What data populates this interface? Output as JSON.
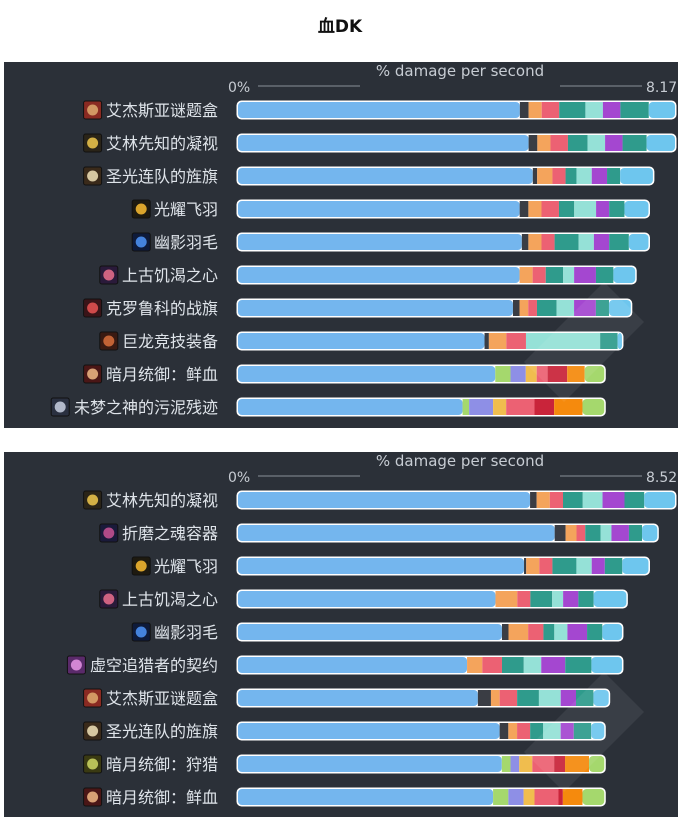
{
  "title": "血DK",
  "colors": {
    "panel_bg": "#2b3038",
    "axis_line": "#8a9099",
    "row_bg": "#ffffff",
    "segments": [
      "#74b6ee",
      "#3a3d44",
      "#f4a45c",
      "#ec6173",
      "#2f9b8c",
      "#95e1d7",
      "#a447d0",
      "#2f9b8c",
      "#6ec6ee"
    ],
    "alt_segments": [
      "#74b6ee",
      "#a5d86d",
      "#8e8fe6",
      "#f0bd4e",
      "#ec6173",
      "#c9243a",
      "#f58a0d",
      "#a5d86d"
    ]
  },
  "chart_data": [
    {
      "type": "bar",
      "orientation": "horizontal",
      "stacked": true,
      "xlabel": "% damage per second",
      "xlim_labels": [
        "0%",
        "8.17"
      ],
      "categories": [
        "艾杰斯亚谜题盒",
        "艾林先知的凝视",
        "圣光连队的旌旗",
        "光耀飞羽",
        "幽影羽毛",
        "上古饥渴之心",
        "克罗鲁科的战旗",
        "巨龙竞技装备",
        "暗月统御：鲜血",
        "未梦之神的污泥残迹"
      ],
      "icons": [
        "puzzle-box-icon",
        "eye-of-seer-icon",
        "banner-icon",
        "radiant-plume-icon",
        "shadow-feather-icon",
        "ancient-heart-icon",
        "war-banner-icon",
        "dragon-gear-icon",
        "darkmoon-blood-icon",
        "slime-remnant-icon"
      ],
      "totals": [
        100,
        100,
        95,
        94,
        94,
        91,
        90,
        88,
        84,
        84
      ],
      "segments": [
        [
          64.5,
          2,
          3,
          4,
          6,
          4,
          4,
          6.5,
          6
        ],
        [
          66.5,
          2,
          3,
          4,
          4.5,
          4,
          4,
          5.5,
          6.5
        ],
        [
          67.5,
          1,
          3.5,
          3,
          2.5,
          3.5,
          3.5,
          3,
          7.5
        ],
        [
          64.5,
          2,
          3,
          4,
          3.5,
          5,
          3,
          3.5,
          5.5
        ],
        [
          65,
          1.5,
          3,
          3,
          5.5,
          3.5,
          3.5,
          4.5,
          4.5
        ],
        [
          64.5,
          0,
          3,
          3,
          4,
          2.5,
          5,
          4,
          5
        ],
        [
          63,
          1.5,
          2,
          2,
          4.5,
          4,
          5,
          3,
          5
        ],
        [
          56.5,
          1,
          4,
          4.5,
          0,
          17,
          0,
          4,
          1
        ],
        [
          59,
          3.5,
          3.5,
          2.5,
          2.5,
          4.5,
          4,
          4.5
        ],
        [
          51.5,
          1.5,
          5.5,
          3,
          6.5,
          4.5,
          6.5,
          5
        ]
      ],
      "segment_palette": [
        "s",
        "s",
        "s",
        "s",
        "s",
        "s",
        "s",
        "s",
        "a",
        "a"
      ]
    },
    {
      "type": "bar",
      "orientation": "horizontal",
      "stacked": true,
      "xlabel": "% damage per second",
      "xlim_labels": [
        "0%",
        "8.52"
      ],
      "categories": [
        "艾林先知的凝视",
        "折磨之魂容器",
        "光耀飞羽",
        "上古饥渴之心",
        "幽影羽毛",
        "虚空追猎者的契约",
        "艾杰斯亚谜题盒",
        "圣光连队的旌旗",
        "暗月统御：狩猎",
        "暗月统御：鲜血"
      ],
      "icons": [
        "eye-of-seer-icon",
        "soul-vessel-icon",
        "radiant-plume-icon",
        "ancient-heart-icon",
        "shadow-feather-icon",
        "void-pact-icon",
        "puzzle-box-icon",
        "banner-icon",
        "darkmoon-hunt-icon",
        "darkmoon-blood-icon"
      ],
      "totals": [
        100,
        96,
        94,
        89,
        88,
        88,
        85,
        84,
        84,
        84
      ],
      "segments": [
        [
          66.5,
          1.5,
          3,
          3,
          4.5,
          4.5,
          5,
          4.5,
          7
        ],
        [
          72.5,
          2.5,
          2.5,
          2,
          3.5,
          2.5,
          4,
          3,
          3.5
        ],
        [
          65.5,
          0.5,
          3,
          3,
          5.5,
          3.5,
          3,
          4,
          6
        ],
        [
          59,
          0,
          5,
          3,
          5,
          2.5,
          3.5,
          3.5,
          7.5
        ],
        [
          60.5,
          1.5,
          4.5,
          3.5,
          2.5,
          3,
          4.5,
          3.5,
          4.5
        ],
        [
          52.5,
          0,
          3.5,
          4.5,
          5,
          4,
          5.5,
          6,
          7
        ],
        [
          55,
          3,
          2,
          4,
          5,
          5,
          3.5,
          4,
          3.5
        ],
        [
          60,
          2,
          2,
          3,
          3,
          4,
          3,
          4,
          3
        ],
        [
          60.5,
          2,
          2,
          3,
          5,
          2.5,
          5.5,
          3.5
        ],
        [
          58.5,
          3.5,
          3.5,
          2.5,
          5.5,
          1,
          4.5,
          5
        ]
      ],
      "segment_palette": [
        "s",
        "s",
        "s",
        "s",
        "s",
        "s",
        "s",
        "s",
        "a",
        "a"
      ]
    }
  ]
}
